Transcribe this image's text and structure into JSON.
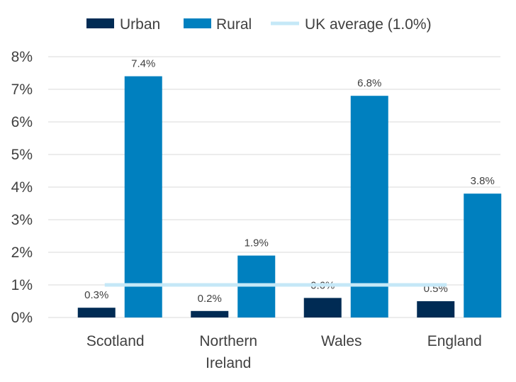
{
  "chart_data": {
    "type": "bar",
    "categories": [
      "Scotland",
      "Northern Ireland",
      "Wales",
      "England"
    ],
    "category_lines": [
      [
        "Scotland"
      ],
      [
        "Northern",
        "Ireland"
      ],
      [
        "Wales"
      ],
      [
        "England"
      ]
    ],
    "series": [
      {
        "name": "Urban",
        "values": [
          0.3,
          0.2,
          0.6,
          0.5
        ],
        "labels": [
          "0.3%",
          "0.2%",
          "0.6%",
          "0.5%"
        ],
        "color": "#002b54"
      },
      {
        "name": "Rural",
        "values": [
          7.4,
          1.9,
          6.8,
          3.8
        ],
        "labels": [
          "7.4%",
          "1.9%",
          "6.8%",
          "3.8%"
        ],
        "color": "#0080bf"
      }
    ],
    "reference_line": {
      "name": "UK average (1.0%)",
      "value": 1.0,
      "color": "#c5e8f7"
    },
    "ylim": [
      0,
      8
    ],
    "yticks": [
      "0%",
      "1%",
      "2%",
      "3%",
      "4%",
      "5%",
      "6%",
      "7%",
      "8%"
    ],
    "legend_position": "top",
    "grid": true,
    "title": "",
    "xlabel": "",
    "ylabel": ""
  }
}
